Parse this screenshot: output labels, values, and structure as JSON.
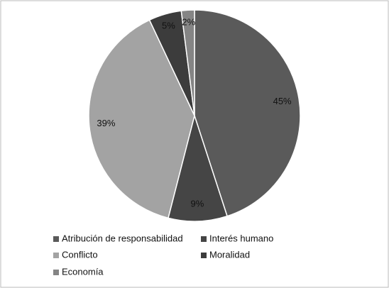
{
  "chart_data": {
    "type": "pie",
    "categories": [
      "Atribución de responsabilidad",
      "Interés humano",
      "Conflicto",
      "Moralidad",
      "Economía"
    ],
    "values": [
      45,
      9,
      39,
      5,
      2
    ],
    "value_labels": [
      "45%",
      "9%",
      "39%",
      "5%",
      "2%"
    ],
    "colors": [
      "#5a5a5a",
      "#454545",
      "#a3a3a3",
      "#3c3c3c",
      "#858585"
    ]
  }
}
